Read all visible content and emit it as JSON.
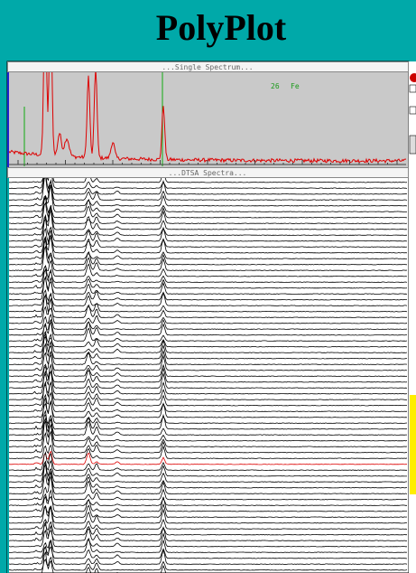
{
  "header": {
    "title": "PolyPlot"
  },
  "window": {
    "single_spectrum": {
      "title": "...Single Spectrum...",
      "atomic_number": "26",
      "element": "Fe"
    },
    "dtsa_spectra": {
      "title": "...DTSA Spectra..."
    }
  }
}
